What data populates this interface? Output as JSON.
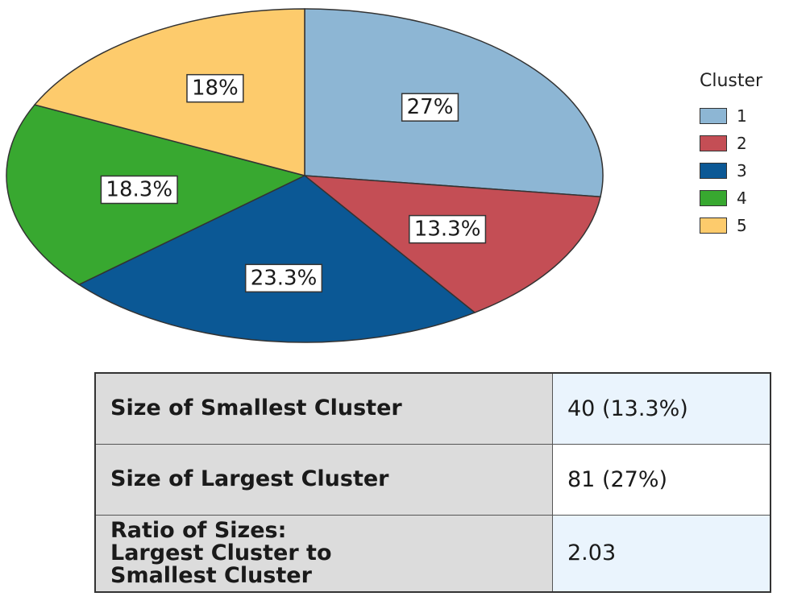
{
  "chart_data": {
    "type": "pie",
    "legend_title": "Cluster",
    "legend_position": "right",
    "slices": [
      {
        "name": "1",
        "value": 27,
        "label": "27%",
        "color": "#8db6d4"
      },
      {
        "name": "2",
        "value": 13.3,
        "label": "13.3%",
        "color": "#c44e55"
      },
      {
        "name": "3",
        "value": 23.3,
        "label": "23.3%",
        "color": "#0b5895"
      },
      {
        "name": "4",
        "value": 18.3,
        "label": "18.3%",
        "color": "#38a830"
      },
      {
        "name": "5",
        "value": 18,
        "label": "18%",
        "color": "#fdcb6c"
      }
    ]
  },
  "table": {
    "rows": [
      {
        "label": "Size of Smallest Cluster",
        "value": "40 (13.3%)"
      },
      {
        "label": "Size of Largest Cluster",
        "value": "81 (27%)"
      },
      {
        "label": "Ratio of Sizes:\nLargest Cluster to\nSmallest Cluster",
        "value": "2.03"
      }
    ]
  }
}
